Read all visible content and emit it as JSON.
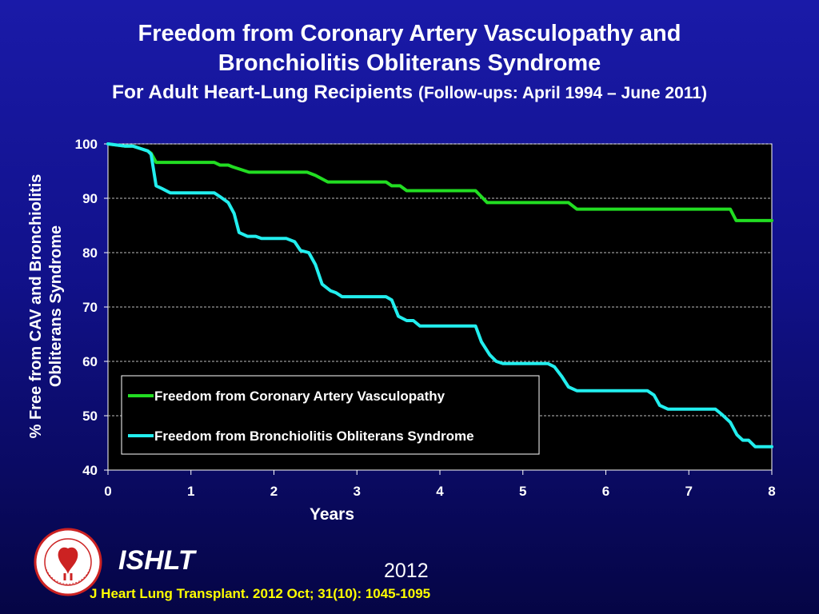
{
  "slide": {
    "title_line1": "Freedom from Coronary Artery Vasculopathy and",
    "title_line2": "Bronchiolitis Obliterans Syndrome",
    "subtitle_main": "For Adult Heart-Lung Recipients",
    "subtitle_paren": "(Follow-ups: April 1994 – June 2011)",
    "org": "ISHLT",
    "year": "2012",
    "citation": "J Heart Lung Transplant.  2012 Oct; 31(10): 1045-1095",
    "logo_ring_text": "International Society for Heart & Lung Transplantation"
  },
  "chart_data": {
    "type": "line",
    "title": "",
    "xlabel": "Years",
    "ylabel": "% Free from CAV and Bronchiolitis Obliterans Syndrome",
    "ylabel_lines": [
      "% Free from CAV and Bronchiolitis",
      "Obliterans Syndrome"
    ],
    "xlim": [
      0,
      8
    ],
    "ylim": [
      40,
      100
    ],
    "x_ticks": [
      "0",
      "1",
      "2",
      "3",
      "4",
      "5",
      "6",
      "7",
      "8"
    ],
    "y_ticks": [
      "40",
      "50",
      "60",
      "70",
      "80",
      "90",
      "100"
    ],
    "grid": "horizontal dashed",
    "legend_position": "lower-left",
    "colors": {
      "cav": "#22dd22",
      "bos": "#22eeee",
      "plot_bg": "#000000"
    },
    "series": [
      {
        "name": "Freedom from Coronary Artery Vasculopathy",
        "color": "#22dd22",
        "x": [
          0,
          0.2,
          0.3,
          0.4,
          0.48,
          0.52,
          0.58,
          0.65,
          1.0,
          1.28,
          1.35,
          1.45,
          1.5,
          1.7,
          2.0,
          2.4,
          2.5,
          2.65,
          3.0,
          3.35,
          3.42,
          3.52,
          3.6,
          4.0,
          4.43,
          4.5,
          4.57,
          5.0,
          5.55,
          5.65,
          6.0,
          7.0,
          7.5,
          7.57,
          8.0
        ],
        "y": [
          100,
          99.6,
          99.6,
          99.1,
          98.7,
          98.3,
          96.6,
          96.6,
          96.6,
          96.6,
          96.1,
          96.1,
          95.8,
          94.8,
          94.8,
          94.8,
          94.2,
          93.0,
          93.0,
          93.0,
          92.3,
          92.3,
          91.4,
          91.4,
          91.4,
          90.3,
          89.2,
          89.2,
          89.2,
          88.0,
          88.0,
          88.0,
          88.0,
          85.9,
          85.9
        ]
      },
      {
        "name": "Freedom from Bronchiolitis Obliterans Syndrome",
        "color": "#22eeee",
        "x": [
          0,
          0.2,
          0.3,
          0.4,
          0.48,
          0.52,
          0.58,
          0.65,
          0.75,
          1.0,
          1.28,
          1.35,
          1.45,
          1.52,
          1.58,
          1.68,
          1.78,
          1.85,
          2.15,
          2.25,
          2.32,
          2.42,
          2.5,
          2.58,
          2.68,
          2.75,
          2.82,
          3.0,
          3.35,
          3.42,
          3.5,
          3.6,
          3.68,
          3.76,
          4.0,
          4.43,
          4.5,
          4.6,
          4.68,
          4.76,
          5.0,
          5.3,
          5.38,
          5.47,
          5.55,
          5.65,
          6.0,
          6.5,
          6.58,
          6.65,
          6.75,
          7.0,
          7.32,
          7.4,
          7.5,
          7.58,
          7.65,
          7.72,
          7.8,
          8.0
        ],
        "y": [
          100,
          99.6,
          99.6,
          99.1,
          98.7,
          98.1,
          92.3,
          91.8,
          91.0,
          91.0,
          91.0,
          90.3,
          89.2,
          87.2,
          83.7,
          83.0,
          83.0,
          82.6,
          82.6,
          82.0,
          80.4,
          80.0,
          77.8,
          74.2,
          73.0,
          72.6,
          71.9,
          71.9,
          71.9,
          71.3,
          68.3,
          67.5,
          67.5,
          66.5,
          66.5,
          66.5,
          63.6,
          61.2,
          60.0,
          59.6,
          59.6,
          59.6,
          59.0,
          57.2,
          55.3,
          54.6,
          54.6,
          54.6,
          53.8,
          51.9,
          51.2,
          51.2,
          51.2,
          50.2,
          48.8,
          46.5,
          45.5,
          45.5,
          44.3,
          44.3
        ]
      }
    ]
  }
}
